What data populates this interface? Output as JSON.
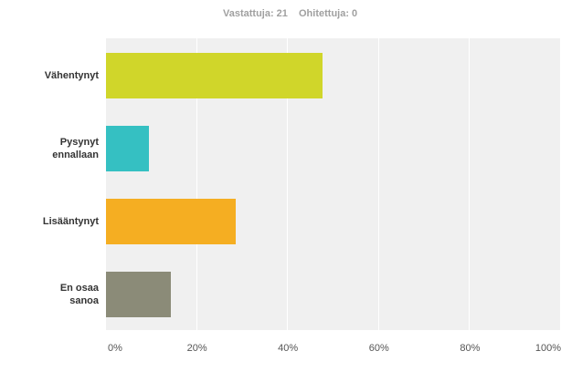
{
  "chart_data": {
    "type": "hbar",
    "header": [
      "Vastattuja: 21",
      "Ohitettuja: 0"
    ],
    "categories": [
      "Vähentynyt",
      "Pysynyt ennallaan",
      "Lisääntynyt",
      "En osaa sanoa"
    ],
    "values": [
      47.62,
      9.52,
      28.57,
      14.29
    ],
    "colors": [
      "#d0d62a",
      "#35c0c2",
      "#f5ae22",
      "#8b8b78"
    ],
    "xlim": [
      0,
      100
    ],
    "xticks": [
      {
        "value": 0,
        "label": "0%"
      },
      {
        "value": 20,
        "label": "20%"
      },
      {
        "value": 40,
        "label": "40%"
      },
      {
        "value": 60,
        "label": "60%"
      },
      {
        "value": 80,
        "label": "80%"
      },
      {
        "value": 100,
        "label": "100%"
      }
    ],
    "grid": true
  }
}
